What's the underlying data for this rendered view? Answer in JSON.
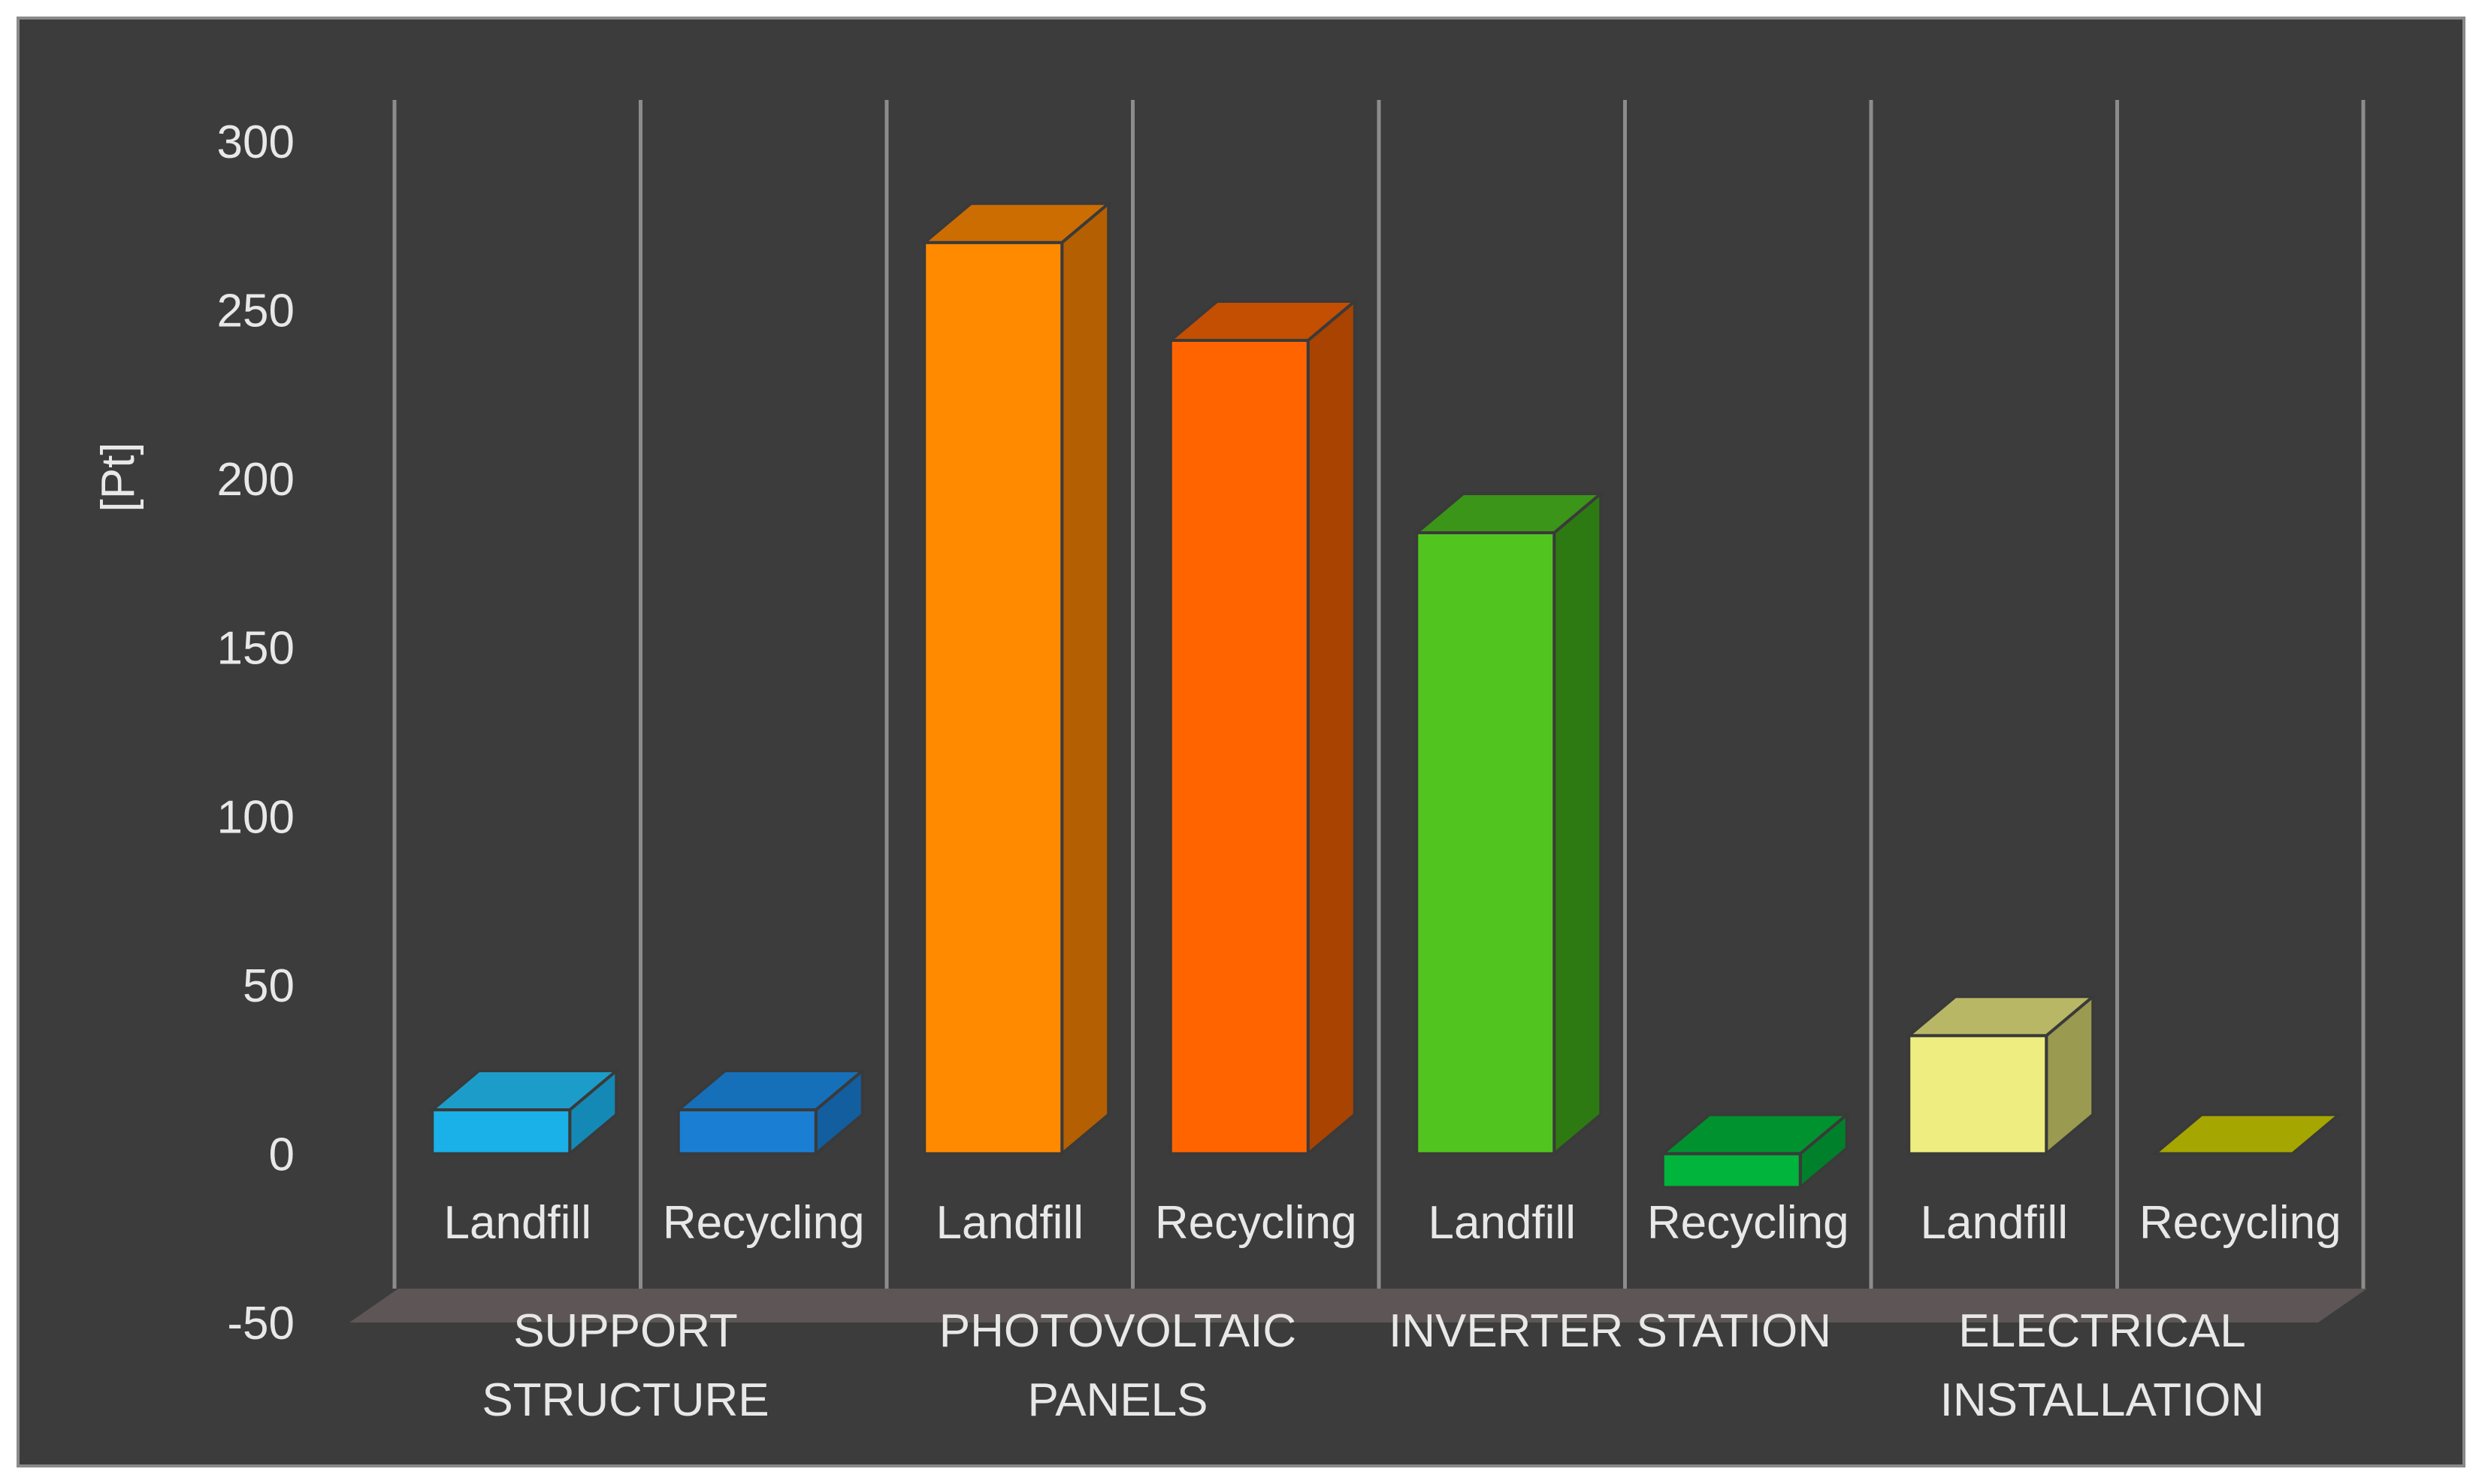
{
  "chart_data": {
    "type": "bar",
    "style": "3d-column",
    "ylabel": "[Pt]",
    "ylim": [
      -50,
      300
    ],
    "yticks": [
      300,
      250,
      200,
      150,
      100,
      50,
      0,
      -50
    ],
    "grid": false,
    "legend": "none",
    "groups": [
      {
        "label": "SUPPORT STRUCTURE",
        "bars": [
          {
            "label": "Landfill",
            "value": 13,
            "colors": {
              "front": "#1ab0e8",
              "side": "#1489b5",
              "top": "#1c9dc9"
            }
          },
          {
            "label": "Recycling",
            "value": 13,
            "colors": {
              "front": "#1a7fd3",
              "side": "#125e9f",
              "top": "#166fb9"
            }
          }
        ]
      },
      {
        "label": "PHOTOVOLTAIC PANELS",
        "bars": [
          {
            "label": "Landfill",
            "value": 270,
            "colors": {
              "front": "#ff8a00",
              "side": "#b35f02",
              "top": "#cc6d02"
            }
          },
          {
            "label": "Recycling",
            "value": 241,
            "colors": {
              "front": "#ff6400",
              "side": "#a84302",
              "top": "#c44e02"
            }
          }
        ]
      },
      {
        "label": "INVERTER STATION",
        "bars": [
          {
            "label": "Landfill",
            "value": 184,
            "colors": {
              "front": "#52c420",
              "side": "#2e7a12",
              "top": "#3b9518"
            }
          },
          {
            "label": "Recycling",
            "value": -10,
            "colors": {
              "front": "#00b43c",
              "side": "#00802a",
              "top": "#00922f"
            }
          }
        ]
      },
      {
        "label": "ELECTRICAL INSTALLATION",
        "bars": [
          {
            "label": "Landfill",
            "value": 35,
            "colors": {
              "front": "#eeee80",
              "side": "#9a9a50",
              "top": "#b7b765"
            }
          },
          {
            "label": "Recycling",
            "value": 0,
            "colors": {
              "front": "#b3b300",
              "side": "#8a8a00",
              "top": "#a6a600"
            }
          }
        ]
      }
    ]
  },
  "colors": {
    "background": "#3c3c3c",
    "frame_border": "#8a8a8a",
    "floor": "#5e5656",
    "walls": "#8c8c8c",
    "text": "#e8e8e8"
  }
}
